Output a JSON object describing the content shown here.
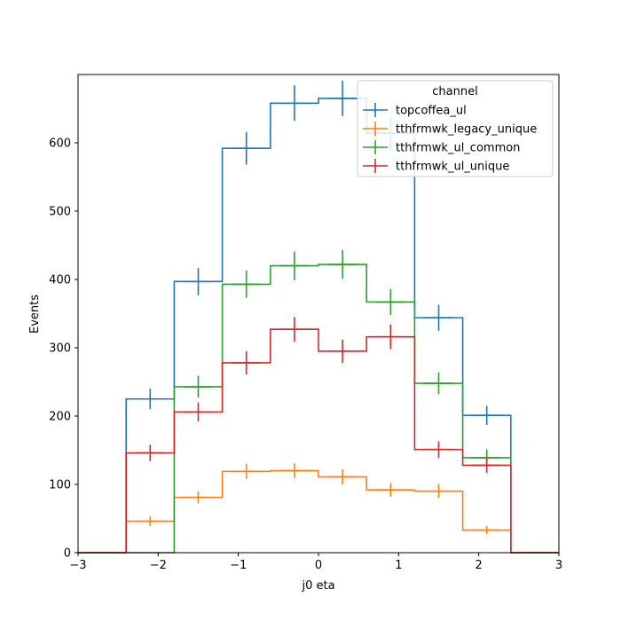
{
  "chart_data": {
    "type": "step-histogram",
    "xlabel": "j0 eta",
    "ylabel": "Events",
    "xlim": [
      -3,
      3
    ],
    "ylim": [
      0,
      700
    ],
    "xticks": [
      -3,
      -2,
      -1,
      0,
      1,
      2,
      3
    ],
    "xtick_labels": [
      "−3",
      "−2",
      "−1",
      "0",
      "1",
      "2",
      "3"
    ],
    "yticks": [
      0,
      100,
      200,
      300,
      400,
      500,
      600
    ],
    "ytick_labels": [
      "0",
      "100",
      "200",
      "300",
      "400",
      "500",
      "600"
    ],
    "grid": false,
    "legend": {
      "title": "channel",
      "placement": "top-right"
    },
    "bin_edges": [
      -3,
      -2.4,
      -1.8,
      -1.2,
      -0.6,
      0,
      0.6,
      1.2,
      1.8,
      2.4,
      3
    ],
    "series": [
      {
        "name": "topcoffea_ul",
        "color": "#1f77b4",
        "values": [
          0,
          225,
          397,
          592,
          658,
          665,
          614,
          344,
          201,
          0
        ],
        "errors": [
          0,
          15,
          20,
          24,
          26,
          26,
          25,
          19,
          14,
          0
        ]
      },
      {
        "name": "tthfrmwk_legacy_unique",
        "color": "#ff7f0e",
        "values": [
          0,
          46,
          81,
          119,
          120,
          111,
          92,
          90,
          33,
          0
        ],
        "errors": [
          0,
          7,
          9,
          11,
          11,
          11,
          10,
          10,
          6,
          0
        ]
      },
      {
        "name": "tthfrmwk_ul_common",
        "color": "#2ca02c",
        "values": [
          0,
          0,
          243,
          393,
          420,
          422,
          367,
          248,
          139,
          0
        ],
        "errors": [
          0,
          0,
          16,
          20,
          21,
          21,
          19,
          16,
          12,
          0
        ]
      },
      {
        "name": "tthfrmwk_ul_unique",
        "color": "#d62728",
        "values": [
          0,
          146,
          206,
          278,
          327,
          295,
          316,
          151,
          128,
          0
        ],
        "errors": [
          0,
          12,
          14,
          17,
          18,
          17,
          18,
          12,
          11,
          0
        ]
      }
    ]
  }
}
